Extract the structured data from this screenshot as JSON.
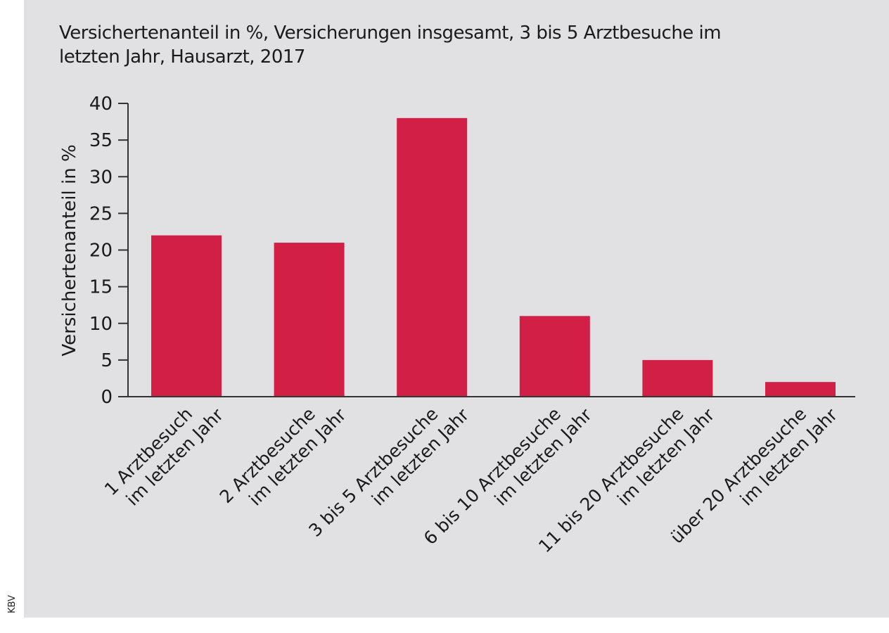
{
  "title_lines": [
    "Versichertenanteil in %, Versicherungen insgesamt, 3 bis 5 Arztbesuche im",
    "letzten Jahr, Hausarzt, 2017"
  ],
  "credit": "KBV",
  "colors": {
    "bar": "#d11f45",
    "axis": "#333333",
    "background": "#e1e1e3"
  },
  "chart_data": {
    "type": "bar",
    "title": "Versichertenanteil in %, Versicherungen insgesamt, 3 bis 5 Arztbesuche im letzten Jahr, Hausarzt, 2017",
    "xlabel": "",
    "ylabel": "Versichertenanteil in %",
    "ylim": [
      0,
      40
    ],
    "yticks": [
      0,
      5,
      10,
      15,
      20,
      25,
      30,
      35,
      40
    ],
    "grid": false,
    "categories": [
      [
        "1 Arztbesuch",
        "im letzten Jahr"
      ],
      [
        "2 Arztbesuche",
        "im letzten Jahr"
      ],
      [
        "3 bis 5 Arztbesuche",
        "im letzten Jahr"
      ],
      [
        "6 bis 10 Arztbesuche",
        "im letzten Jahr"
      ],
      [
        "11 bis 20 Arztbesuche",
        "im letzten Jahr"
      ],
      [
        "über 20 Arztbesuche",
        "im letzten Jahr"
      ]
    ],
    "values": [
      22,
      21,
      38,
      11,
      5,
      2
    ]
  }
}
